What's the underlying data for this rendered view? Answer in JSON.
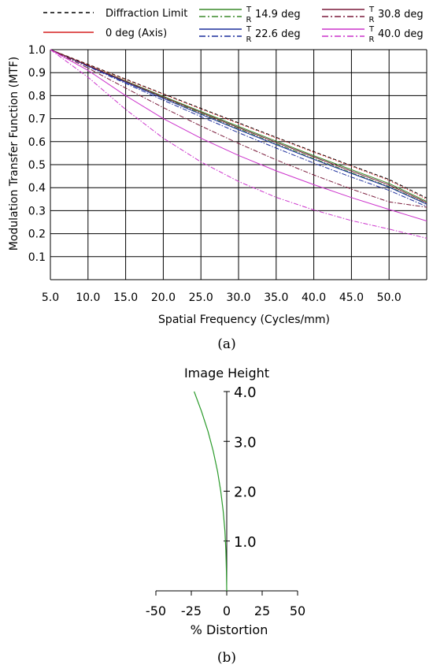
{
  "panel_labels": {
    "a": "(a)",
    "b": "(b)"
  },
  "colors": {
    "diffraction": "#000000",
    "axis": "#d62020",
    "deg14_9": "#3a8a2a",
    "deg22_6": "#1c2e9c",
    "deg30_8": "#7a1a3a",
    "deg40_0": "#cc33cc",
    "distortion": "#2a9a2a",
    "grid": "#000000"
  },
  "chart_data": [
    {
      "type": "line",
      "title": "",
      "xlabel": "Spatial Frequency (Cycles/mm)",
      "ylabel": "Modulation Transfer Function (MTF)",
      "xlim": [
        5,
        55
      ],
      "ylim": [
        0,
        1.0
      ],
      "x_ticks": [
        "5.0",
        "10.0",
        "15.0",
        "20.0",
        "25.0",
        "30.0",
        "35.0",
        "40.0",
        "45.0",
        "50.0"
      ],
      "y_ticks": [
        "1.0",
        "0.9",
        "0.8",
        "0.7",
        "0.6",
        "0.5",
        "0.4",
        "0.3",
        "0.2",
        "0.1"
      ],
      "grid": true,
      "legend_position": "top",
      "legend": [
        {
          "label": "Diffraction Limit",
          "style": "dashed",
          "color_key": "diffraction"
        },
        {
          "label": "0 deg (Axis)",
          "style": "solid",
          "color_key": "axis"
        },
        {
          "label": "14.9 deg",
          "style": "pair",
          "color_key": "deg14_9",
          "t": "T",
          "r": "R"
        },
        {
          "label": "22.6 deg",
          "style": "pair",
          "color_key": "deg22_6",
          "t": "T",
          "r": "R"
        },
        {
          "label": "30.8 deg",
          "style": "pair",
          "color_key": "deg30_8",
          "t": "T",
          "r": "R"
        },
        {
          "label": "40.0 deg",
          "style": "pair",
          "color_key": "deg40_0",
          "t": "T",
          "r": "R"
        }
      ],
      "x": [
        5,
        10,
        15,
        20,
        25,
        30,
        35,
        40,
        45,
        50,
        55
      ],
      "series": [
        {
          "color_key": "diffraction",
          "dash": "4,3",
          "values": [
            1.0,
            0.936,
            0.872,
            0.808,
            0.745,
            0.682,
            0.619,
            0.557,
            0.496,
            0.436,
            0.355
          ]
        },
        {
          "color_key": "axis",
          "dash": "1.5,2",
          "values": [
            1.0,
            0.935,
            0.87,
            0.806,
            0.742,
            0.679,
            0.616,
            0.554,
            0.493,
            0.432,
            0.35
          ]
        },
        {
          "color_key": "deg14_9",
          "dash": "",
          "values": [
            1.0,
            0.932,
            0.864,
            0.797,
            0.731,
            0.666,
            0.602,
            0.539,
            0.478,
            0.418,
            0.34
          ]
        },
        {
          "color_key": "deg14_9",
          "dash": "6,2,1.5,2",
          "values": [
            1.0,
            0.93,
            0.86,
            0.791,
            0.723,
            0.656,
            0.591,
            0.527,
            0.465,
            0.405,
            0.33
          ]
        },
        {
          "color_key": "deg22_6",
          "dash": "",
          "values": [
            1.0,
            0.929,
            0.858,
            0.788,
            0.719,
            0.652,
            0.587,
            0.523,
            0.462,
            0.402,
            0.328
          ]
        },
        {
          "color_key": "deg22_6",
          "dash": "6,2,1.5,2",
          "values": [
            1.0,
            0.927,
            0.853,
            0.78,
            0.709,
            0.639,
            0.572,
            0.507,
            0.446,
            0.388,
            0.318
          ]
        },
        {
          "color_key": "deg30_8",
          "dash": "",
          "values": [
            1.0,
            0.931,
            0.862,
            0.794,
            0.727,
            0.661,
            0.597,
            0.534,
            0.472,
            0.412,
            0.335
          ]
        },
        {
          "color_key": "deg30_8",
          "dash": "6,2,1.5,2",
          "values": [
            1.0,
            0.92,
            0.833,
            0.748,
            0.668,
            0.592,
            0.521,
            0.455,
            0.394,
            0.338,
            0.315
          ]
        },
        {
          "color_key": "deg40_0",
          "dash": "",
          "values": [
            1.0,
            0.91,
            0.8,
            0.7,
            0.615,
            0.54,
            0.473,
            0.413,
            0.357,
            0.305,
            0.255
          ]
        },
        {
          "color_key": "deg40_0",
          "dash": "6,2,1.5,2",
          "values": [
            1.0,
            0.88,
            0.74,
            0.615,
            0.512,
            0.427,
            0.358,
            0.303,
            0.257,
            0.22,
            0.18
          ]
        }
      ]
    },
    {
      "type": "line",
      "title": "Image Height",
      "xlabel": "% Distortion",
      "xlim": [
        -50,
        50
      ],
      "ylim": [
        0,
        4.0
      ],
      "x_ticks": [
        "-50",
        "-25",
        "0",
        "25",
        "50"
      ],
      "y_ticks": [
        "4.0",
        "3.0",
        "2.0",
        "1.0"
      ],
      "grid": false,
      "series": [
        {
          "color_key": "distortion",
          "x": [
            0,
            -0.2,
            -0.6,
            -1.3,
            -2.5,
            -4.2,
            -6.5,
            -9.5,
            -13.2,
            -17.8,
            -23.0
          ],
          "y": [
            0,
            0.4,
            0.8,
            1.2,
            1.6,
            2.0,
            2.4,
            2.8,
            3.2,
            3.6,
            4.0
          ]
        }
      ]
    }
  ]
}
